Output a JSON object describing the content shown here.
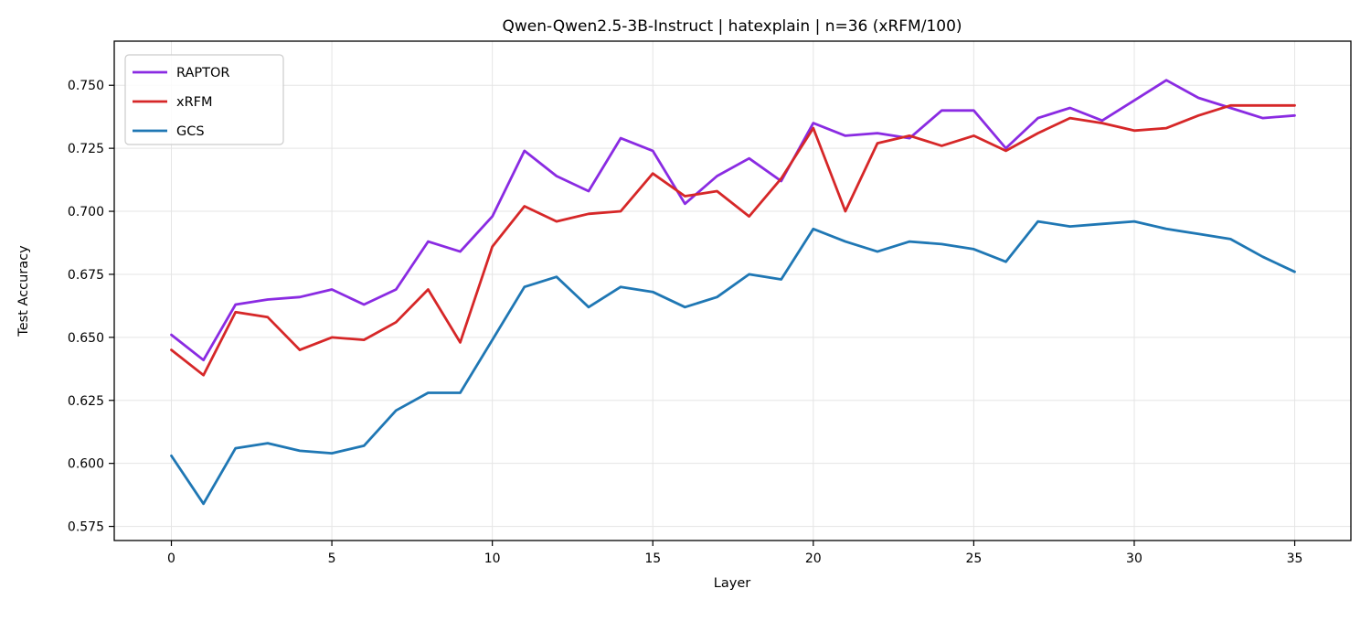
{
  "chart_data": {
    "type": "line",
    "title": "Qwen-Qwen2.5-3B-Instruct | hatexplain | n=36 (xRFM/100)",
    "xlabel": "Layer",
    "ylabel": "Test Accuracy",
    "x": [
      0,
      1,
      2,
      3,
      4,
      5,
      6,
      7,
      8,
      9,
      10,
      11,
      12,
      13,
      14,
      15,
      16,
      17,
      18,
      19,
      20,
      21,
      22,
      23,
      24,
      25,
      26,
      27,
      28,
      29,
      30,
      31,
      32,
      33,
      34,
      35
    ],
    "series": [
      {
        "name": "RAPTOR",
        "color": "#8A2BE2",
        "values": [
          0.651,
          0.641,
          0.663,
          0.665,
          0.666,
          0.669,
          0.663,
          0.669,
          0.688,
          0.684,
          0.698,
          0.724,
          0.714,
          0.708,
          0.729,
          0.724,
          0.703,
          0.714,
          0.721,
          0.712,
          0.735,
          0.73,
          0.731,
          0.729,
          0.74,
          0.74,
          0.725,
          0.737,
          0.741,
          0.736,
          0.744,
          0.752,
          0.745,
          0.741,
          0.737,
          0.738
        ]
      },
      {
        "name": "xRFM",
        "color": "#D62728",
        "values": [
          0.645,
          0.635,
          0.66,
          0.658,
          0.645,
          0.65,
          0.649,
          0.656,
          0.669,
          0.648,
          0.686,
          0.702,
          0.696,
          0.699,
          0.7,
          0.715,
          0.706,
          0.708,
          0.698,
          0.713,
          0.733,
          0.7,
          0.727,
          0.73,
          0.726,
          0.73,
          0.724,
          0.731,
          0.737,
          0.735,
          0.732,
          0.733,
          0.738,
          0.742,
          0.742,
          0.742
        ]
      },
      {
        "name": "GCS",
        "color": "#1F77B4",
        "values": [
          0.603,
          0.584,
          0.606,
          0.608,
          0.605,
          0.604,
          0.607,
          0.621,
          0.628,
          0.628,
          0.649,
          0.67,
          0.674,
          0.662,
          0.67,
          0.668,
          0.662,
          0.666,
          0.675,
          0.673,
          0.693,
          0.688,
          0.684,
          0.688,
          0.687,
          0.685,
          0.68,
          0.696,
          0.694,
          0.695,
          0.696,
          0.693,
          0.691,
          0.689,
          0.682,
          0.676
        ]
      }
    ],
    "xlim": [
      -1.78,
      36.75
    ],
    "ylim": [
      0.5694,
      0.7675
    ],
    "xticks": [
      0,
      5,
      10,
      15,
      20,
      25,
      30,
      35
    ],
    "xtick_labels": [
      "0",
      "5",
      "10",
      "15",
      "20",
      "25",
      "30",
      "35"
    ],
    "yticks": [
      0.575,
      0.6,
      0.625,
      0.65,
      0.675,
      0.7,
      0.725,
      0.75
    ],
    "ytick_labels": [
      "0.575",
      "0.600",
      "0.625",
      "0.650",
      "0.675",
      "0.700",
      "0.725",
      "0.750"
    ],
    "grid": true,
    "grid_color": "#E5E5E5",
    "background": "#FFFFFF",
    "legend_position": "upper left"
  }
}
